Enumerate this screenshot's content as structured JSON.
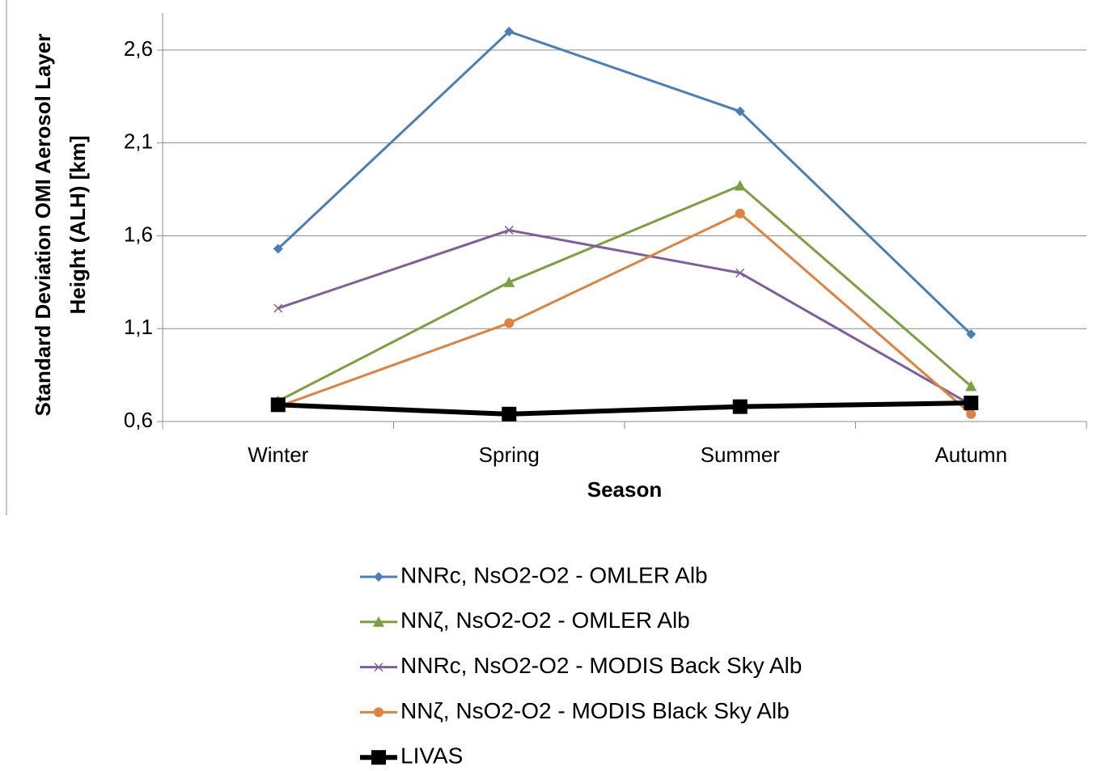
{
  "chart_data": {
    "type": "line",
    "categories": [
      "Winter",
      "Spring",
      "Summer",
      "Autumn"
    ],
    "x_label": "Season",
    "y_label": [
      "Standard Deviation OMI Aerosol Layer",
      "Height (ALH) [km]"
    ],
    "ylim": [
      0.6,
      2.8
    ],
    "yticks": [
      {
        "value": 0.6,
        "label": "0,6"
      },
      {
        "value": 1.1,
        "label": "1,1"
      },
      {
        "value": 1.6,
        "label": "1,6"
      },
      {
        "value": 2.1,
        "label": "2,1"
      },
      {
        "value": 2.6,
        "label": "2,6"
      }
    ],
    "grid": true,
    "legend": "bottom",
    "series": [
      {
        "name": "NNRc, NsO2-O2 - OMLER Alb",
        "color": "#4a7ebb",
        "marker": "diamond",
        "values": [
          1.53,
          2.7,
          2.27,
          1.07
        ]
      },
      {
        "name": "NNζ, NsO2-O2 - OMLER Alb",
        "color": "#7aa13d",
        "marker": "triangle",
        "values": [
          0.71,
          1.35,
          1.87,
          0.79
        ]
      },
      {
        "name": "NNRc, NsO2-O2 - MODIS Back Sky Alb",
        "color": "#7d5fa0",
        "marker": "x",
        "values": [
          1.21,
          1.63,
          1.4,
          0.69
        ]
      },
      {
        "name": "NNζ, NsO2-O2 - MODIS Black Sky Alb",
        "color": "#e0823d",
        "marker": "circle",
        "values": [
          0.68,
          1.13,
          1.72,
          0.64
        ]
      },
      {
        "name": "LIVAS",
        "color": "#000000",
        "marker": "square",
        "values": [
          0.69,
          0.64,
          0.68,
          0.7
        ]
      }
    ]
  }
}
